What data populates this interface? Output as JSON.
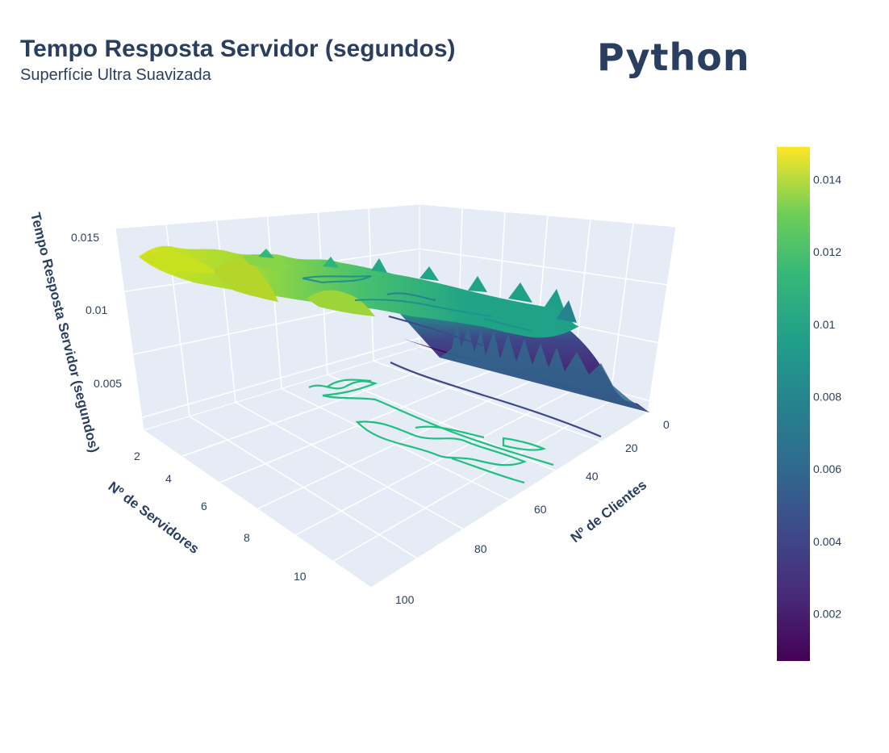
{
  "header": {
    "title": "Tempo Resposta Servidor (segundos)",
    "subtitle": "Superfície Ultra Suavizada",
    "brand": "Python"
  },
  "chart_data": {
    "type": "surface",
    "title": "Tempo Resposta Servidor (segundos)",
    "subtitle": "Superfície Ultra Suavizada",
    "colorscale": "viridis",
    "axes": {
      "x": {
        "label": "Nº de Clientes",
        "ticks": [
          "0",
          "20",
          "40",
          "60",
          "80",
          "100"
        ],
        "range": [
          0,
          100
        ]
      },
      "y": {
        "label": "Nº de Servidores",
        "ticks": [
          "2",
          "4",
          "6",
          "8",
          "10"
        ],
        "range": [
          1,
          11
        ]
      },
      "z": {
        "label": "Tempo Resposta Servidor (segundos)",
        "ticks": [
          "0.005",
          "0.01",
          "0.015"
        ],
        "range": [
          0,
          0.015
        ]
      }
    },
    "colorbar": {
      "ticks": [
        "0.014",
        "0.012",
        "0.01",
        "0.008",
        "0.006",
        "0.004",
        "0.002"
      ],
      "tick_values": [
        0.014,
        0.012,
        0.01,
        0.008,
        0.006,
        0.004,
        0.002
      ],
      "range": [
        0.0007,
        0.0149
      ]
    },
    "surface_profile": {
      "clients": [
        0,
        10,
        20,
        30,
        40,
        50,
        60,
        70,
        80,
        90,
        100
      ],
      "response_time_low_servers": [
        0.0008,
        0.0065,
        0.009,
        0.0105,
        0.0112,
        0.0118,
        0.0122,
        0.0126,
        0.013,
        0.0134,
        0.0138
      ],
      "response_time_high_servers": [
        0.0009,
        0.0095,
        0.0115,
        0.0122,
        0.0125,
        0.0128,
        0.0131,
        0.0134,
        0.0137,
        0.014,
        0.0143
      ]
    },
    "floor_projection": "contours"
  }
}
